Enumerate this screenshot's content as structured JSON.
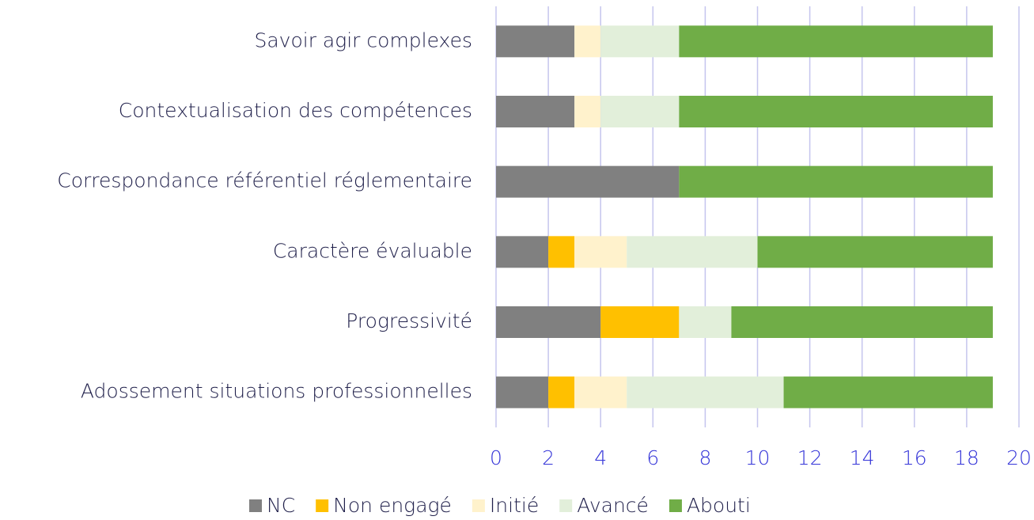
{
  "chart_data": {
    "type": "stacked_barh",
    "categories": [
      "Savoir agir complexes",
      "Contextualisation des compétences",
      "Correspondance référentiel réglementaire",
      "Caractère évaluable",
      "Progressivité",
      "Adossement situations professionnelles"
    ],
    "series": [
      {
        "name": "NC",
        "color": "#808080",
        "values": [
          3,
          3,
          7,
          2,
          4,
          2
        ]
      },
      {
        "name": "Non engagé",
        "color": "#ffc000",
        "values": [
          0,
          0,
          0,
          1,
          3,
          1
        ]
      },
      {
        "name": "Initié",
        "color": "#fff2cc",
        "values": [
          1,
          1,
          0,
          2,
          0,
          2
        ]
      },
      {
        "name": "Avancé",
        "color": "#e2efda",
        "values": [
          3,
          3,
          0,
          5,
          2,
          6
        ]
      },
      {
        "name": "Abouti",
        "color": "#70ad47",
        "values": [
          12,
          12,
          12,
          9,
          10,
          8
        ]
      }
    ],
    "xlim": [
      0,
      20
    ],
    "xticks": [
      0,
      2,
      4,
      6,
      8,
      10,
      12,
      14,
      16,
      18,
      20
    ],
    "grid": true,
    "legend": "bottom"
  }
}
